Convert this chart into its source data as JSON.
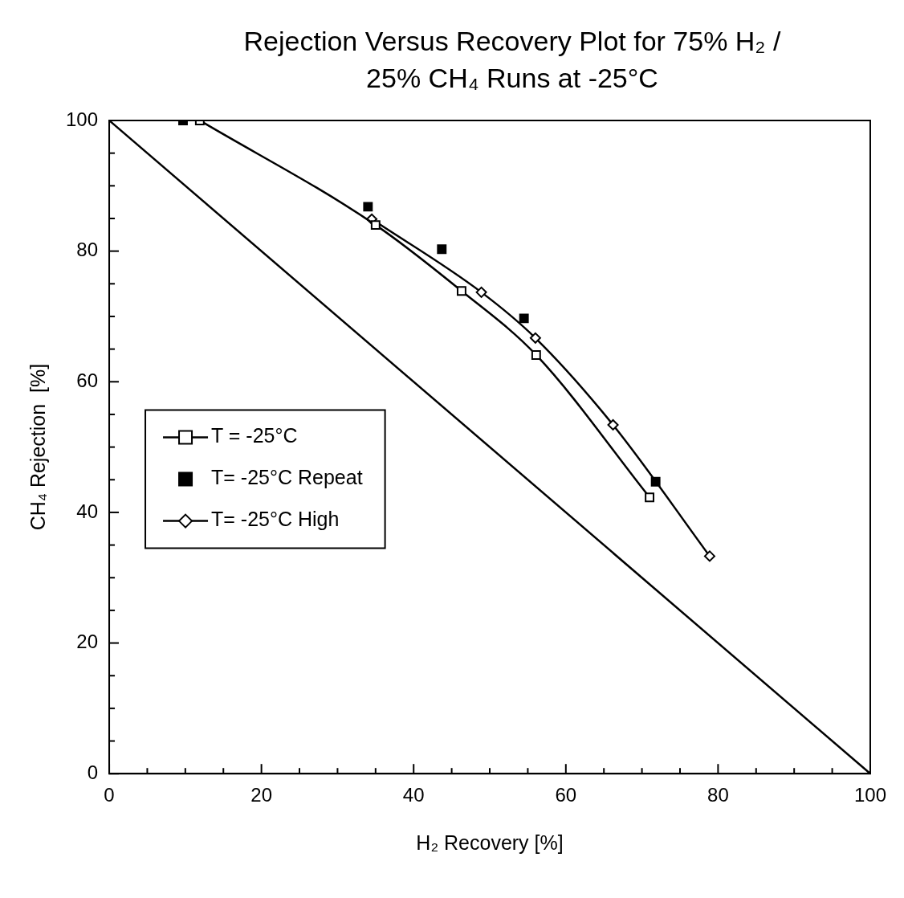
{
  "chart_data": {
    "type": "scatter",
    "title": "Rejection Versus Recovery Plot for 75% H₂ /\n25% CH₄ Runs at -25°C",
    "xlabel": "H₂ Recovery [%]",
    "ylabel": "CH₄ Rejection  [%]",
    "xlim": [
      0,
      100
    ],
    "ylim": [
      0,
      100
    ],
    "xticks": [
      0,
      {
        "value": 5,
        "label": null
      },
      {
        "value": 10,
        "label": null
      },
      {
        "value": 15,
        "label": null
      },
      20,
      {
        "value": 25,
        "label": null
      },
      {
        "value": 30,
        "label": null
      },
      {
        "value": 35,
        "label": null
      },
      40,
      {
        "value": 45,
        "label": null
      },
      {
        "value": 50,
        "label": null
      },
      {
        "value": 55,
        "label": null
      },
      60,
      {
        "value": 65,
        "label": null
      },
      {
        "value": 70,
        "label": null
      },
      {
        "value": 75,
        "label": null
      },
      80,
      {
        "value": 85,
        "label": null
      },
      {
        "value": 90,
        "label": null
      },
      {
        "value": 95,
        "label": null
      },
      100
    ],
    "yticks": [
      0,
      {
        "value": 5,
        "label": null
      },
      {
        "value": 10,
        "label": null
      },
      {
        "value": 15,
        "label": null
      },
      20,
      {
        "value": 25,
        "label": null
      },
      {
        "value": 30,
        "label": null
      },
      {
        "value": 35,
        "label": null
      },
      40,
      {
        "value": 45,
        "label": null
      },
      {
        "value": 50,
        "label": null
      },
      {
        "value": 55,
        "label": null
      },
      60,
      {
        "value": 65,
        "label": null
      },
      {
        "value": 70,
        "label": null
      },
      {
        "value": 75,
        "label": null
      },
      80,
      {
        "value": 85,
        "label": null
      },
      {
        "value": 90,
        "label": null
      },
      {
        "value": 95,
        "label": null
      },
      100
    ],
    "grid": false,
    "legend": "left",
    "series": [
      {
        "name": "T = -25°C",
        "type": "line",
        "color": "#000000",
        "marker": "square",
        "x": [
          11.9,
          35,
          46.3,
          56.1,
          71
        ],
        "values": [
          100,
          84,
          73.9,
          64.1,
          42.3
        ]
      },
      {
        "name": "T= -25°C Repeat",
        "color": "#000000",
        "marker": "square",
        "x": [
          9.7,
          34,
          43.7,
          54.5,
          71.8
        ],
        "values": [
          100,
          86.8,
          80.3,
          69.7,
          44.7
        ]
      },
      {
        "name": "T= -25°C High",
        "type": "line",
        "color": "#000000",
        "marker": "diamond",
        "x": [
          34.5,
          48.9,
          56,
          66.2,
          78.9
        ],
        "values": [
          84.9,
          73.7,
          66.7,
          53.4,
          33.3
        ]
      },
      {
        "type": "line",
        "color": "#000000",
        "marker": "none",
        "x": [
          0,
          100
        ],
        "values": [
          100,
          0
        ]
      }
    ]
  }
}
